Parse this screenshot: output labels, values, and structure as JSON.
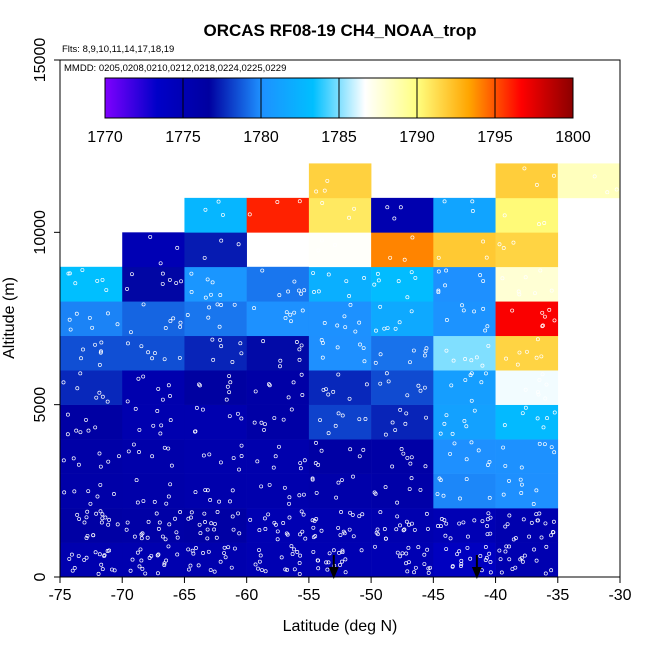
{
  "chart_data": {
    "type": "heatmap",
    "title": "ORCAS RF08-19 CH4_NOAA_trop",
    "flights_label": "Flts: 8,9,10,11,14,17,18,19",
    "dates_label": "MMDD: 0205,0208,0210,0212,0218,0224,0225,0229",
    "xlabel": "Latitude (deg N)",
    "ylabel": "Altitude (m)",
    "xlim": [
      -75,
      -30
    ],
    "ylim": [
      0,
      15000
    ],
    "x_ticks": [
      -75,
      -70,
      -65,
      -60,
      -55,
      -50,
      -45,
      -40,
      -35,
      -30
    ],
    "y_ticks": [
      0,
      5000,
      10000,
      15000
    ],
    "colorbar": {
      "min": 1770,
      "max": 1800,
      "ticks": [
        1770,
        1775,
        1780,
        1785,
        1790,
        1795,
        1800
      ],
      "colors": [
        "#7f00ff",
        "#0000c8",
        "#0000a0",
        "#1e90ff",
        "#00bfff",
        "#ffffff",
        "#ffff80",
        "#ffa500",
        "#ff0000",
        "#8b0000"
      ]
    },
    "cell_width_deg": 5,
    "cell_height_m": 1000,
    "columns": [
      {
        "x0": -75,
        "cells": [
          [
            0,
            1775.4
          ],
          [
            1,
            1776.3
          ],
          [
            2,
            1776.0
          ],
          [
            3,
            1776.1
          ],
          [
            4,
            1776.4
          ],
          [
            5,
            1777.6
          ],
          [
            6,
            1778.5
          ],
          [
            7,
            1779.7
          ],
          [
            8,
            1783.3
          ]
        ]
      },
      {
        "x0": -70,
        "cells": [
          [
            0,
            1775.4
          ],
          [
            1,
            1776.2
          ],
          [
            2,
            1775.9
          ],
          [
            3,
            1775.8
          ],
          [
            4,
            1775.4
          ],
          [
            5,
            1775.5
          ],
          [
            6,
            1778.5
          ],
          [
            7,
            1779.0
          ],
          [
            8,
            1776.8
          ],
          [
            9,
            1775.0
          ]
        ]
      },
      {
        "x0": -65,
        "cells": [
          [
            0,
            1775.5
          ],
          [
            1,
            1776.3
          ],
          [
            2,
            1775.7
          ],
          [
            3,
            1775.6
          ],
          [
            4,
            1775.4
          ],
          [
            5,
            1776.7
          ],
          [
            6,
            1777.5
          ],
          [
            7,
            1779.4
          ],
          [
            8,
            1780.4
          ],
          [
            9,
            1777.3
          ],
          [
            10,
            1782.7
          ]
        ]
      },
      {
        "x0": -60,
        "cells": [
          [
            0,
            1775.2
          ],
          [
            1,
            1775.2
          ],
          [
            2,
            1775.6
          ],
          [
            3,
            1775.6
          ],
          [
            4,
            1776.2
          ],
          [
            5,
            1776.2
          ],
          [
            6,
            1776.9
          ],
          [
            7,
            1780.1
          ],
          [
            8,
            1779.4
          ],
          [
            10,
            1796.0
          ]
        ]
      },
      {
        "x0": -55,
        "cells": [
          [
            0,
            1775.2
          ],
          [
            1,
            1775.3
          ],
          [
            2,
            1775.8
          ],
          [
            3,
            1776.3
          ],
          [
            4,
            1778.2
          ],
          [
            5,
            1777.6
          ],
          [
            6,
            1780.0
          ],
          [
            7,
            1780.1
          ],
          [
            8,
            1782.2
          ],
          [
            9,
            1786.8
          ],
          [
            10,
            1790.8
          ],
          [
            11,
            1791.7
          ]
        ]
      },
      {
        "x0": -50,
        "cells": [
          [
            0,
            1775.1
          ],
          [
            1,
            1775.4
          ],
          [
            2,
            1776.0
          ],
          [
            3,
            1776.2
          ],
          [
            4,
            1777.5
          ],
          [
            5,
            1778.4
          ],
          [
            6,
            1779.3
          ],
          [
            7,
            1781.8
          ],
          [
            8,
            1783.1
          ],
          [
            9,
            1794.0
          ],
          [
            10,
            1775.4
          ]
        ]
      },
      {
        "x0": -45,
        "cells": [
          [
            0,
            1774.0
          ],
          [
            1,
            1775.0
          ],
          [
            2,
            1779.8
          ],
          [
            3,
            1780.0
          ],
          [
            4,
            1781.2
          ],
          [
            5,
            1781.0
          ],
          [
            6,
            1785.0
          ],
          [
            7,
            1780.2
          ],
          [
            8,
            1780.0
          ],
          [
            9,
            1792.0
          ],
          [
            10,
            1781.4
          ]
        ]
      },
      {
        "x0": -40,
        "cells": [
          [
            0,
            1775.3
          ],
          [
            1,
            1775.5
          ],
          [
            2,
            1780.0
          ],
          [
            3,
            1780.1
          ],
          [
            4,
            1783.0
          ],
          [
            5,
            1786.5
          ],
          [
            6,
            1791.6
          ],
          [
            7,
            1796.8
          ],
          [
            8,
            1787.8
          ],
          [
            9,
            1791.6
          ],
          [
            10,
            1790.2
          ],
          [
            11,
            1791.8
          ]
        ]
      },
      {
        "x0": -35,
        "cells": [
          [
            11,
            1788.4
          ]
        ]
      }
    ],
    "arrows_at_latitude": [
      -53,
      -41.5
    ]
  }
}
